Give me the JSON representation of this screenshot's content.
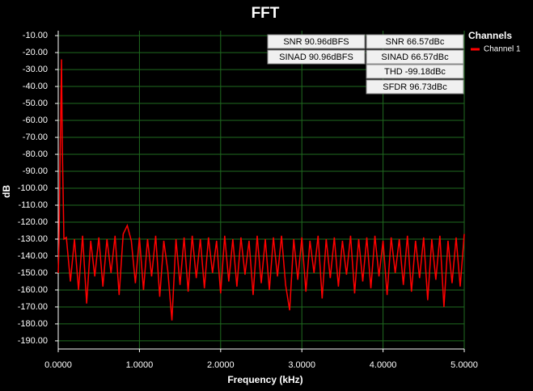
{
  "chart_data": {
    "type": "line",
    "title": "FFT",
    "x_label": "Frequency (kHz)",
    "y_label": "dB",
    "legend_title": "Channels",
    "legend": "top-right",
    "grid": true,
    "grid_color": "#1f6b1f",
    "annotations": [
      "SNR 90.96dBFS",
      "SNR 66.57dBc",
      "SINAD 90.96dBFS",
      "SINAD 66.57dBc",
      "THD -99.18dBc",
      "SFDR 96.73dBc"
    ],
    "xlim": [
      0,
      5
    ],
    "ylim": [
      -194.8,
      -7.1
    ],
    "xticks": [
      {
        "value": 0,
        "label": "0.0000"
      },
      {
        "value": 1,
        "label": "1.0000"
      },
      {
        "value": 2,
        "label": "2.0000"
      },
      {
        "value": 3,
        "label": "3.0000"
      },
      {
        "value": 4,
        "label": "4.0000"
      },
      {
        "value": 5,
        "label": "5.0000"
      }
    ],
    "yticks": [
      {
        "value": -10,
        "label": "-10.00"
      },
      {
        "value": -20,
        "label": "-20.00"
      },
      {
        "value": -30,
        "label": "-30.00"
      },
      {
        "value": -40,
        "label": "-40.00"
      },
      {
        "value": -50,
        "label": "-50.00"
      },
      {
        "value": -60,
        "label": "-60.00"
      },
      {
        "value": -70,
        "label": "-70.00"
      },
      {
        "value": -80,
        "label": "-80.00"
      },
      {
        "value": -90,
        "label": "-90.00"
      },
      {
        "value": -100,
        "label": "-100.00"
      },
      {
        "value": -110,
        "label": "-110.00"
      },
      {
        "value": -120,
        "label": "-120.00"
      },
      {
        "value": -130,
        "label": "-130.00"
      },
      {
        "value": -140,
        "label": "-140.00"
      },
      {
        "value": -150,
        "label": "-150.00"
      },
      {
        "value": -160,
        "label": "-160.00"
      },
      {
        "value": -170,
        "label": "-170.00"
      },
      {
        "value": -180,
        "label": "-180.00"
      },
      {
        "value": -190,
        "label": "-190.00"
      }
    ],
    "x": [
      0,
      0.01,
      0.02,
      0.03,
      0.04,
      0.05,
      0.07,
      0.1,
      0.15,
      0.2,
      0.25,
      0.3,
      0.35,
      0.4,
      0.45,
      0.5,
      0.55,
      0.6,
      0.65,
      0.7,
      0.75,
      0.8,
      0.85,
      0.9,
      0.95,
      1.0,
      1.05,
      1.1,
      1.15,
      1.2,
      1.25,
      1.3,
      1.35,
      1.4,
      1.45,
      1.5,
      1.55,
      1.6,
      1.65,
      1.7,
      1.75,
      1.8,
      1.85,
      1.9,
      1.95,
      2.0,
      2.05,
      2.1,
      2.15,
      2.2,
      2.25,
      2.3,
      2.35,
      2.4,
      2.45,
      2.5,
      2.55,
      2.6,
      2.65,
      2.7,
      2.75,
      2.8,
      2.85,
      2.9,
      2.95,
      3.0,
      3.05,
      3.1,
      3.15,
      3.2,
      3.25,
      3.3,
      3.35,
      3.4,
      3.45,
      3.5,
      3.55,
      3.6,
      3.65,
      3.7,
      3.75,
      3.8,
      3.85,
      3.9,
      3.95,
      4.0,
      4.05,
      4.1,
      4.15,
      4.2,
      4.25,
      4.3,
      4.35,
      4.4,
      4.45,
      4.5,
      4.55,
      4.6,
      4.65,
      4.7,
      4.75,
      4.8,
      4.85,
      4.9,
      4.95,
      5.0
    ],
    "series": [
      {
        "name": "Channel 1",
        "color": "#ff0000",
        "values": [
          -150,
          -132,
          -90,
          -60,
          -24,
          -75,
          -130,
          -129,
          -155,
          -130,
          -160,
          -128,
          -168,
          -131,
          -152,
          -129,
          -158,
          -130,
          -150,
          -128,
          -163,
          -127,
          -122,
          -131,
          -156,
          -129,
          -160,
          -130,
          -152,
          -128,
          -164,
          -131,
          -149,
          -178,
          -130,
          -157,
          -129,
          -161,
          -128,
          -153,
          -130,
          -159,
          -129,
          -150,
          -131,
          -162,
          -128,
          -155,
          -130,
          -158,
          -129,
          -151,
          -131,
          -163,
          -128,
          -156,
          -130,
          -160,
          -129,
          -152,
          -128,
          -157,
          -172,
          -130,
          -154,
          -129,
          -161,
          -131,
          -150,
          -128,
          -165,
          -130,
          -153,
          -129,
          -158,
          -131,
          -151,
          -128,
          -162,
          -130,
          -155,
          -129,
          -159,
          -128,
          -152,
          -131,
          -163,
          -129,
          -150,
          -130,
          -157,
          -128,
          -161,
          -131,
          -153,
          -129,
          -166,
          -130,
          -154,
          -128,
          -170,
          -131,
          -156,
          -129,
          -158,
          -127
        ]
      }
    ]
  }
}
